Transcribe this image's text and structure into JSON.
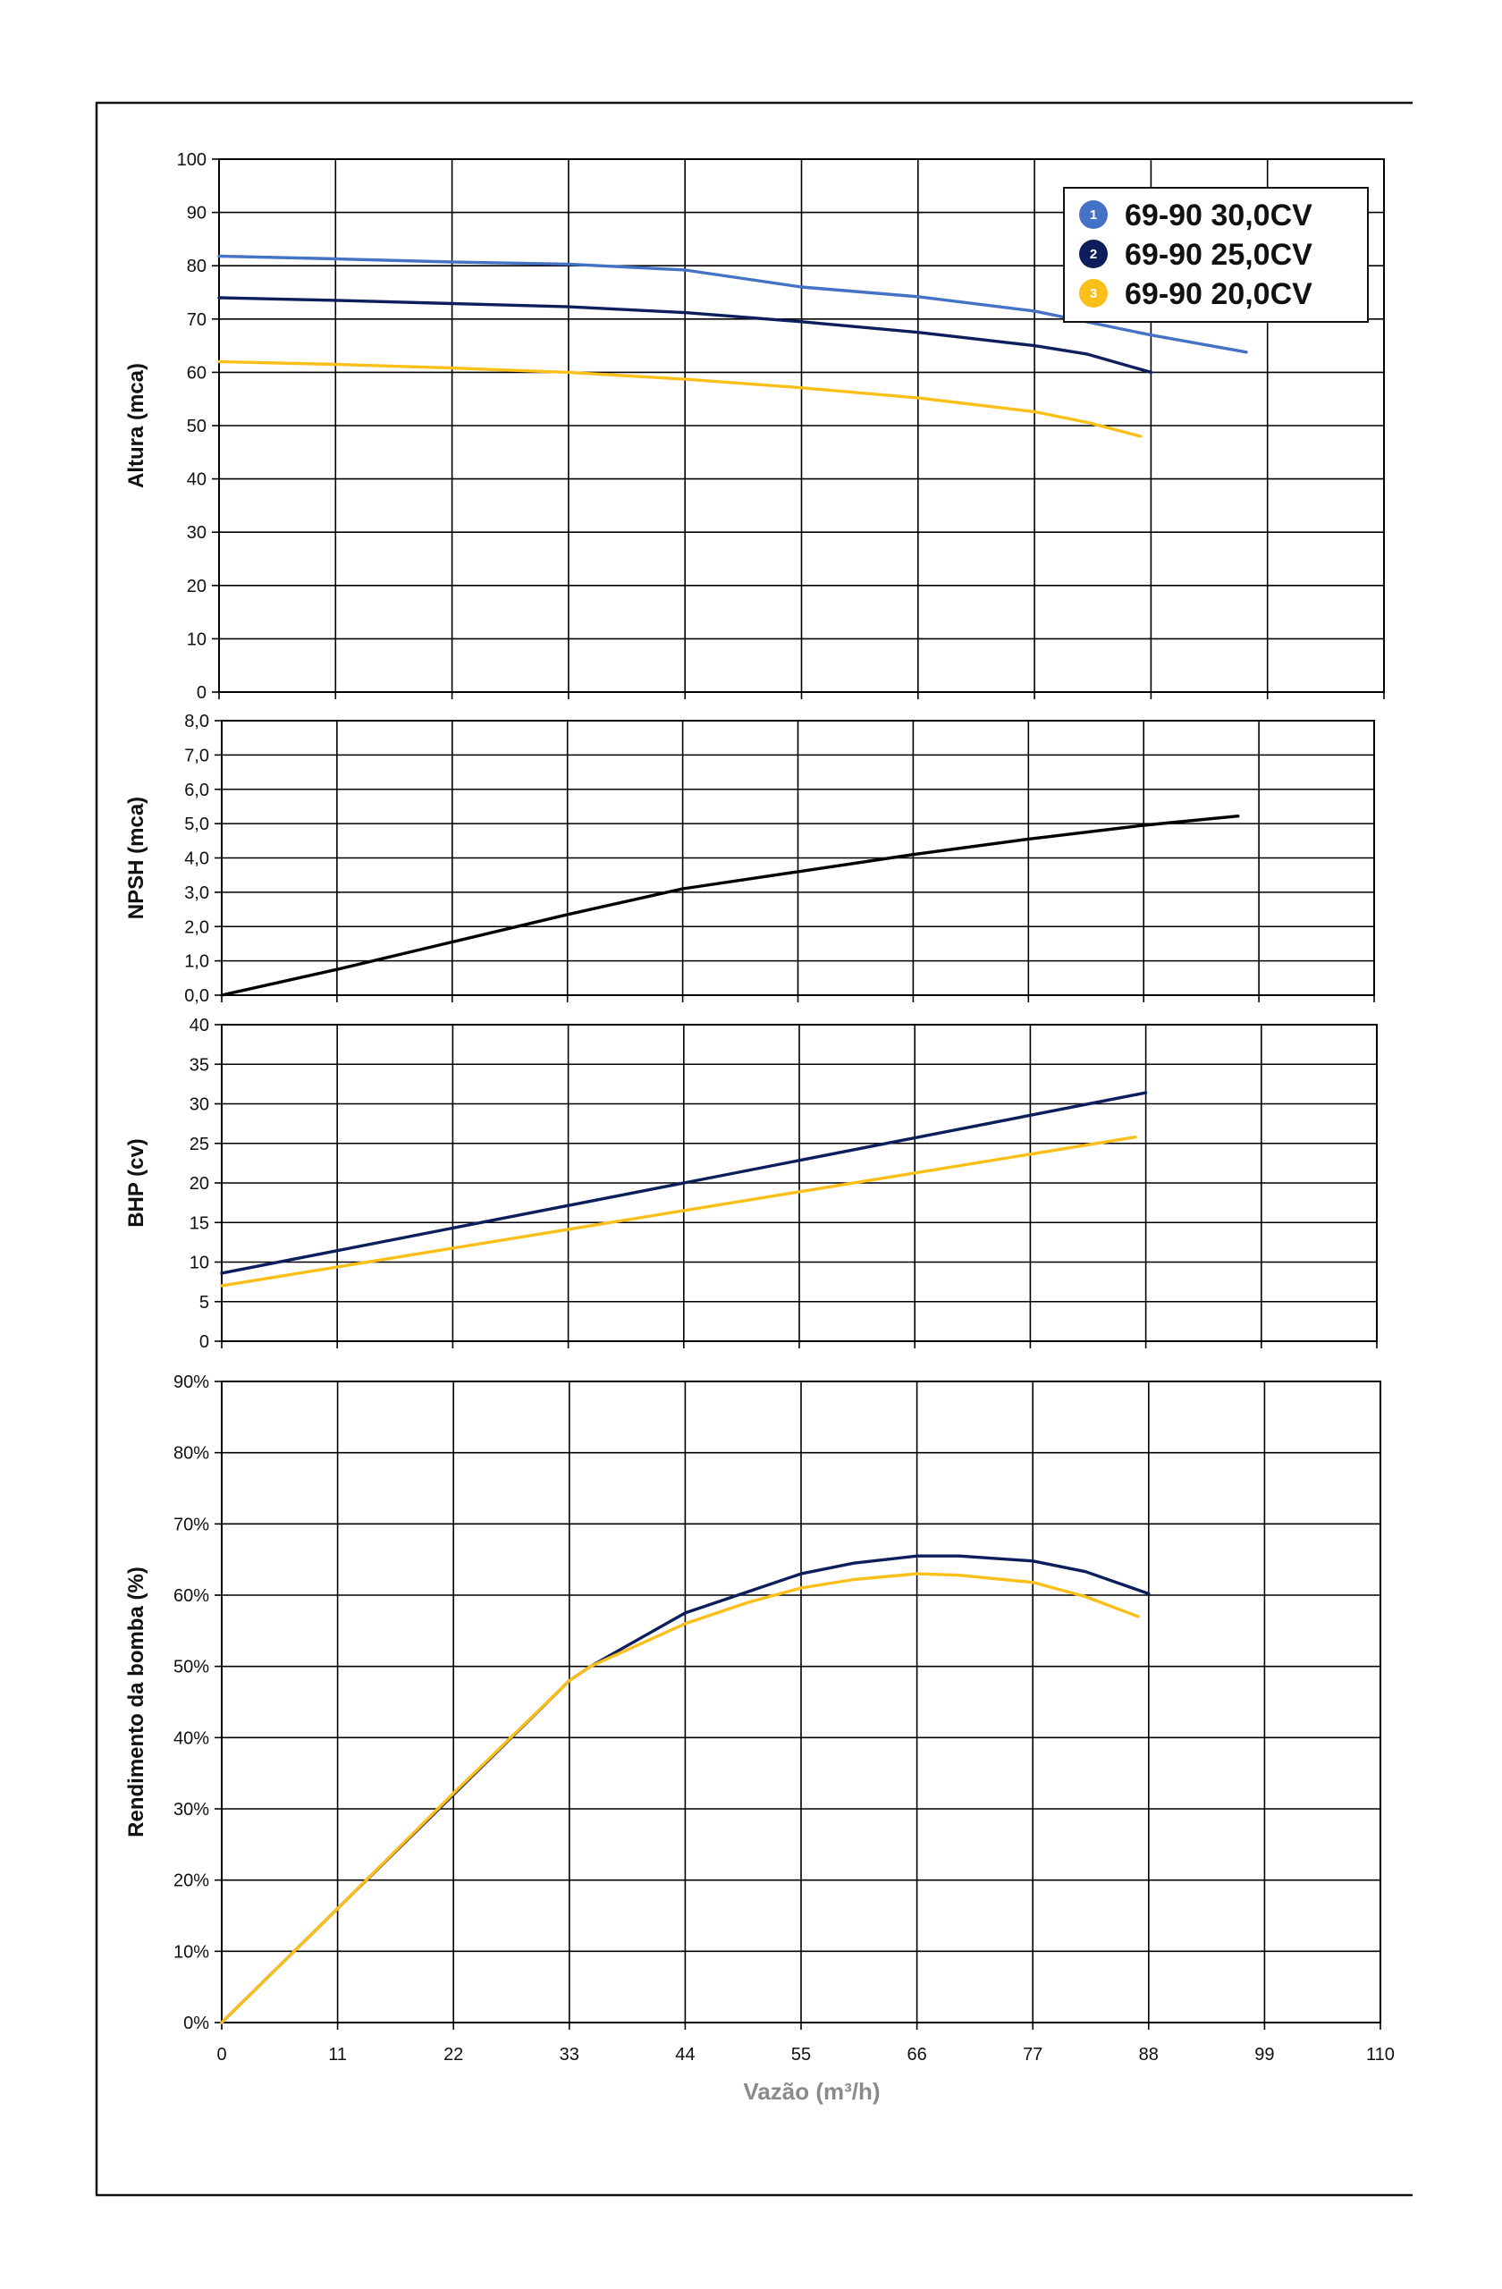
{
  "colors": {
    "series1": "#4472c4",
    "series2": "#0c1f5c",
    "series3": "#fbbf1a",
    "npsh": "#000000",
    "grid": "#000000",
    "xtitle": "#8a8a8a"
  },
  "legend": {
    "placement": "top-right",
    "items": [
      {
        "num": "1",
        "label": "69-90 30,0CV"
      },
      {
        "num": "2",
        "label": "69-90 25,0CV"
      },
      {
        "num": "3",
        "label": "69-90 20,0CV"
      }
    ]
  },
  "x_axis": {
    "label": "Vazão (m³/h)",
    "ticks": [
      "0",
      "11",
      "22",
      "33",
      "44",
      "55",
      "66",
      "77",
      "88",
      "99",
      "110"
    ]
  },
  "chart_data": [
    {
      "type": "line",
      "ylabel": "Altura (mca)",
      "xlim": [
        0,
        110
      ],
      "ylim": [
        0,
        100
      ],
      "grid": true,
      "yticks": [
        "0",
        "10",
        "20",
        "30",
        "40",
        "50",
        "60",
        "70",
        "80",
        "90",
        "100"
      ],
      "series": [
        {
          "name": "69-90 30,0CV",
          "color_key": "series1",
          "x": [
            0,
            11,
            22,
            33,
            44,
            55,
            66,
            77,
            88,
            97
          ],
          "y": [
            81.8,
            81.3,
            80.7,
            80.3,
            79.2,
            76,
            74.2,
            71.5,
            67,
            63.8
          ]
        },
        {
          "name": "69-90 25,0CV",
          "color_key": "series2",
          "x": [
            0,
            11,
            22,
            33,
            44,
            55,
            66,
            77,
            82,
            88
          ],
          "y": [
            74,
            73.5,
            72.9,
            72.3,
            71.2,
            69.5,
            67.5,
            65,
            63.4,
            60
          ]
        },
        {
          "name": "69-90 20,0CV",
          "color_key": "series3",
          "x": [
            0,
            11,
            22,
            33,
            44,
            55,
            66,
            77,
            82,
            87
          ],
          "y": [
            62,
            61.5,
            60.8,
            60,
            58.7,
            57.1,
            55.2,
            52.6,
            50.6,
            48
          ]
        }
      ]
    },
    {
      "type": "line",
      "ylabel": "NPSH (mca)",
      "xlim": [
        0,
        110
      ],
      "ylim": [
        0,
        8
      ],
      "grid": true,
      "yticks": [
        "0,0",
        "1,0",
        "2,0",
        "3,0",
        "4,0",
        "5,0",
        "6,0",
        "7,0",
        "8,0"
      ],
      "series": [
        {
          "color_key": "npsh",
          "x": [
            0,
            11,
            22,
            33,
            44,
            55,
            66,
            77,
            88,
            97
          ],
          "y": [
            0,
            0.75,
            1.55,
            2.35,
            3.1,
            3.6,
            4.1,
            4.55,
            4.95,
            5.22
          ]
        }
      ]
    },
    {
      "type": "line",
      "ylabel": "BHP (cv)",
      "xlim": [
        0,
        110
      ],
      "ylim": [
        0,
        40
      ],
      "grid": true,
      "yticks": [
        "0",
        "5",
        "10",
        "15",
        "20",
        "25",
        "30",
        "35",
        "40"
      ],
      "series": [
        {
          "color_key": "series2",
          "x": [
            0,
            88
          ],
          "y": [
            8.6,
            31.4
          ]
        },
        {
          "color_key": "series3",
          "x": [
            0,
            87
          ],
          "y": [
            7,
            25.8
          ]
        }
      ]
    },
    {
      "type": "line",
      "ylabel": "Rendimento da bomba (%)",
      "xlim": [
        0,
        110
      ],
      "ylim": [
        0,
        90
      ],
      "grid": true,
      "yticks": [
        "0%",
        "10%",
        "20%",
        "30%",
        "40%",
        "50%",
        "60%",
        "70%",
        "80%",
        "90%"
      ],
      "series": [
        {
          "color_key": "series2",
          "x": [
            0,
            11,
            22,
            33,
            35,
            44,
            50,
            55,
            60,
            66,
            70,
            77,
            82,
            88
          ],
          "y": [
            0,
            16,
            32,
            48,
            50,
            57.5,
            60.5,
            63,
            64.5,
            65.5,
            65.5,
            64.8,
            63.3,
            60.2
          ]
        },
        {
          "color_key": "series3",
          "x": [
            0,
            11,
            22,
            33,
            35,
            44,
            50,
            55,
            60,
            66,
            70,
            77,
            82,
            87
          ],
          "y": [
            0,
            16,
            32.2,
            48,
            50,
            56,
            59,
            61,
            62.2,
            63,
            62.8,
            61.8,
            59.8,
            57
          ]
        }
      ]
    }
  ]
}
